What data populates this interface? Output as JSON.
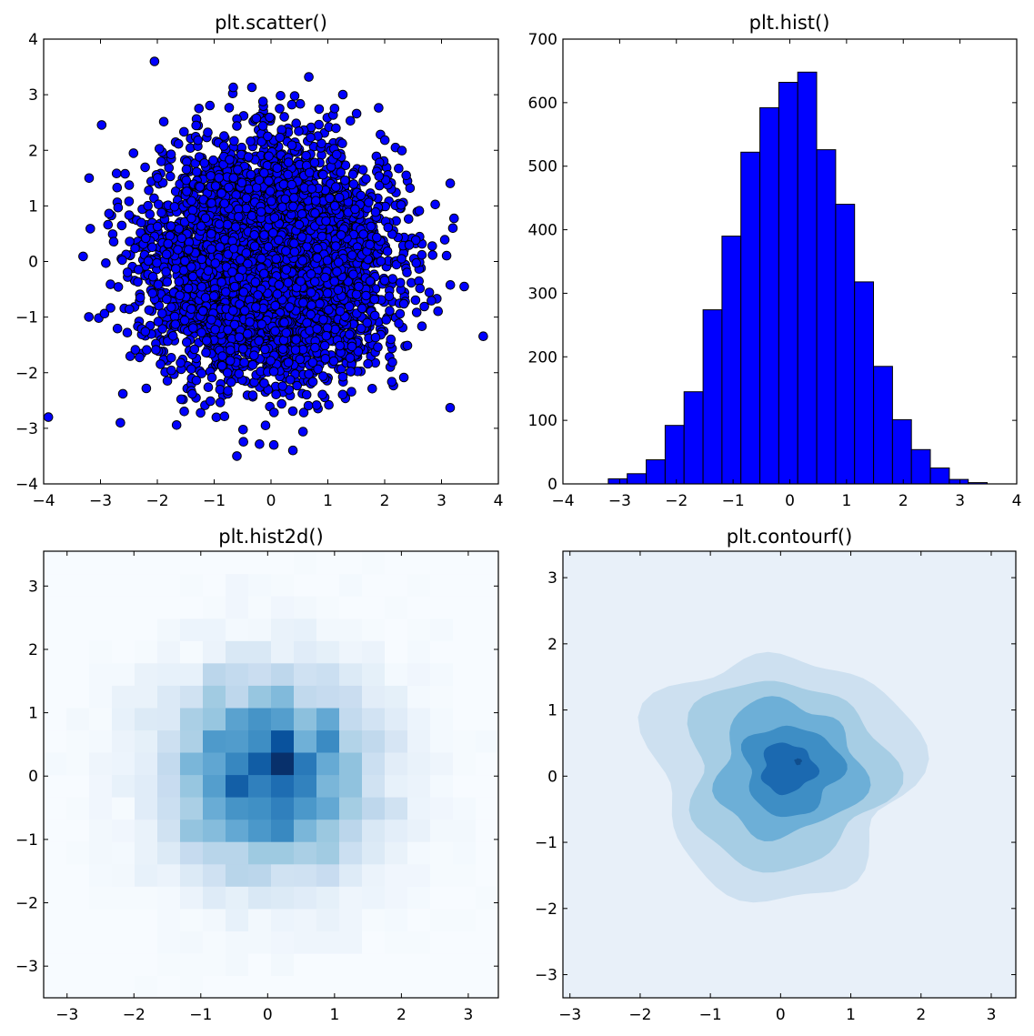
{
  "chart_data": [
    {
      "type": "scatter",
      "title": "plt.scatter()",
      "xlim": [
        -4,
        4
      ],
      "ylim": [
        -4,
        4
      ],
      "xticks": [
        -4,
        -3,
        -2,
        -1,
        0,
        1,
        2,
        3,
        4
      ],
      "yticks": [
        -4,
        -3,
        -2,
        -1,
        0,
        1,
        2,
        3,
        4
      ],
      "xtick_labels": [
        "−4",
        "−3",
        "−2",
        "−1",
        "0",
        "1",
        "2",
        "3",
        "4"
      ],
      "ytick_labels": [
        "−4",
        "−3",
        "−2",
        "−1",
        "0",
        "1",
        "2",
        "3",
        "4"
      ],
      "marker_color": "#0000ff",
      "n_points": 5000,
      "distribution": "standard normal (mean 0, sd 1) in both x and y",
      "notable_points": [
        [
          -2.05,
          3.6
        ],
        [
          -0.6,
          -3.5
        ],
        [
          0.05,
          -3.3
        ],
        [
          3.4,
          -0.45
        ],
        [
          -3.2,
          1.5
        ],
        [
          3.2,
          0.6
        ],
        [
          -2.65,
          -2.9
        ]
      ],
      "grid": false
    },
    {
      "type": "bar",
      "title": "plt.hist()",
      "xlim": [
        -4,
        4
      ],
      "ylim": [
        0,
        700
      ],
      "xticks": [
        -4,
        -3,
        -2,
        -1,
        0,
        1,
        2,
        3,
        4
      ],
      "yticks": [
        0,
        100,
        200,
        300,
        400,
        500,
        600,
        700
      ],
      "xtick_labels": [
        "−4",
        "−3",
        "−2",
        "−1",
        "0",
        "1",
        "2",
        "3",
        "4"
      ],
      "ytick_labels": [
        "0",
        "100",
        "200",
        "300",
        "400",
        "500",
        "600",
        "700"
      ],
      "bar_color": "#0000ff",
      "bin_edges": [
        -3.2,
        -2.866,
        -2.532,
        -2.198,
        -1.864,
        -1.53,
        -1.196,
        -0.862,
        -0.528,
        -0.194,
        0.14,
        0.474,
        0.808,
        1.142,
        1.476,
        1.81,
        2.144,
        2.478,
        2.812,
        3.146,
        3.48
      ],
      "values": [
        8,
        16,
        38,
        92,
        145,
        274,
        390,
        522,
        592,
        632,
        648,
        526,
        440,
        318,
        185,
        101,
        54,
        25,
        7,
        2
      ],
      "grid": false
    },
    {
      "type": "heatmap",
      "title": "plt.hist2d()",
      "xlim": [
        -3.35,
        3.45
      ],
      "ylim": [
        -3.5,
        3.55
      ],
      "xticks": [
        -3,
        -2,
        -1,
        0,
        1,
        2,
        3
      ],
      "yticks": [
        -3,
        -2,
        -1,
        0,
        1,
        2,
        3
      ],
      "xtick_labels": [
        "−3",
        "−2",
        "−1",
        "0",
        "1",
        "2",
        "3"
      ],
      "ytick_labels": [
        "−3",
        "−2",
        "−1",
        "0",
        "1",
        "2",
        "3"
      ],
      "bins": [
        20,
        20
      ],
      "colormap": "Blues",
      "peak_location": [
        0.3,
        0.25
      ],
      "grid": false
    },
    {
      "type": "contour",
      "title": "plt.contourf()",
      "xlim": [
        -3.1,
        3.35
      ],
      "ylim": [
        -3.35,
        3.4
      ],
      "xticks": [
        -3,
        -2,
        -1,
        0,
        1,
        2,
        3
      ],
      "yticks": [
        -3,
        -2,
        -1,
        0,
        1,
        2,
        3
      ],
      "xtick_labels": [
        "−3",
        "−2",
        "−1",
        "0",
        "1",
        "2",
        "3"
      ],
      "ytick_labels": [
        "−3",
        "−2",
        "−1",
        "0",
        "1",
        "2",
        "3"
      ],
      "colormap": "Blues",
      "alpha": 0.5,
      "level_colors": [
        "#e8f0f9",
        "#cde0f0",
        "#a6cde4",
        "#6dafd7",
        "#3e8ec5",
        "#1b69b0",
        "#104e8e"
      ],
      "grid": false
    }
  ]
}
